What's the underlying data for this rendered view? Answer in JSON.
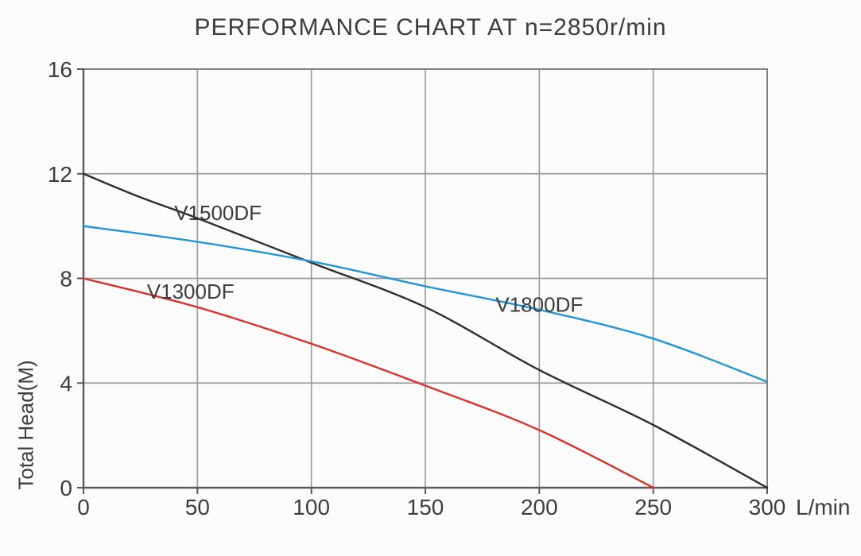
{
  "title": "PERFORMANCE CHART AT n=2850r/min",
  "colors": {
    "background": "#fbfbfb",
    "grid": "#9c9c9c",
    "border": "#828282",
    "axis": "#5a5a5a",
    "text": "#3d3d3d"
  },
  "chart_data": {
    "type": "line",
    "title": "PERFORMANCE CHART AT n=2850r/min",
    "xlabel": "L/min",
    "ylabel": "Total Head(M)",
    "xlim": [
      0,
      300
    ],
    "ylim": [
      0,
      16
    ],
    "x_ticks": [
      0,
      50,
      100,
      150,
      200,
      250,
      300
    ],
    "y_ticks": [
      0,
      4,
      8,
      12,
      16
    ],
    "grid": true,
    "legend": "inline-curve-labels",
    "series": [
      {
        "name": "V1500DF",
        "color": "#2e2e2e",
        "points": [
          [
            0,
            12.0
          ],
          [
            25,
            11.1
          ],
          [
            50,
            10.3
          ],
          [
            100,
            8.6
          ],
          [
            150,
            6.9
          ],
          [
            200,
            4.5
          ],
          [
            250,
            2.4
          ],
          [
            300,
            0.0
          ]
        ],
        "label_pos": [
          59,
          10.5
        ]
      },
      {
        "name": "V1800DF",
        "color": "#2196d4",
        "points": [
          [
            0,
            10.0
          ],
          [
            50,
            9.4
          ],
          [
            100,
            8.65
          ],
          [
            150,
            7.7
          ],
          [
            200,
            6.8
          ],
          [
            250,
            5.7
          ],
          [
            300,
            4.05
          ]
        ],
        "label_pos": [
          200,
          7.0
        ]
      },
      {
        "name": "V1300DF",
        "color": "#d9322a",
        "points": [
          [
            0,
            8.0
          ],
          [
            50,
            6.9
          ],
          [
            100,
            5.5
          ],
          [
            150,
            3.9
          ],
          [
            200,
            2.2
          ],
          [
            250,
            0.0
          ]
        ],
        "label_pos": [
          47,
          7.5
        ]
      }
    ]
  }
}
